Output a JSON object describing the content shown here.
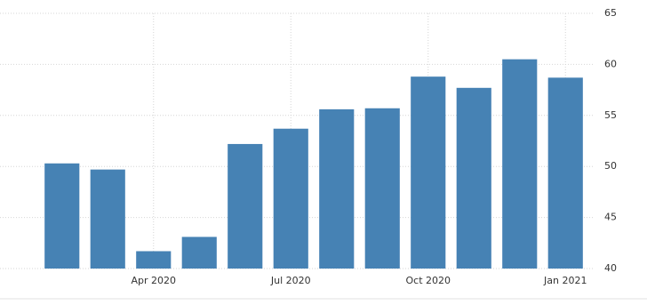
{
  "chart_data": {
    "type": "bar",
    "categories": [
      null,
      null,
      "Apr 2020",
      null,
      null,
      "Jul 2020",
      null,
      null,
      "Oct 2020",
      null,
      null,
      "Jan 2021"
    ],
    "values": [
      50.3,
      49.7,
      41.7,
      43.1,
      52.2,
      53.7,
      55.6,
      55.7,
      58.8,
      57.7,
      60.5,
      58.7
    ],
    "color": "#4682b4",
    "ylim": [
      40,
      65
    ],
    "yticks": [
      40,
      45,
      50,
      55,
      60,
      65
    ],
    "grid": true
  }
}
